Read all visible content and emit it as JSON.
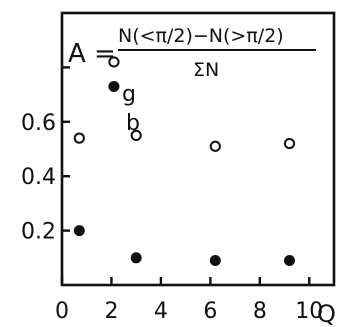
{
  "chart_data": {
    "type": "scatter",
    "annotation": {
      "lhs": "A =",
      "numerator": "N(<π/2)−N(>π/2)",
      "denominator": "ΣN"
    },
    "xlabel": "Q",
    "ylabel": "",
    "xlim": [
      0,
      11
    ],
    "ylim": [
      0,
      1.0
    ],
    "x_ticks": [
      0,
      2,
      4,
      6,
      8,
      10
    ],
    "y_ticks": [
      0.2,
      0.4,
      0.6
    ],
    "y_ticklabels": [
      "0.2",
      "0.4",
      "0.6"
    ],
    "x_ticklabels": [
      "0",
      "2",
      "4",
      "6",
      "8",
      "10"
    ],
    "series": [
      {
        "name": "g",
        "marker": "open-circle",
        "x": [
          0.7,
          2.1,
          3.0,
          6.2,
          9.2
        ],
        "y": [
          0.54,
          0.82,
          0.55,
          0.51,
          0.52
        ]
      },
      {
        "name": "b",
        "marker": "filled-circle",
        "x": [
          0.7,
          2.1,
          3.0,
          6.2,
          9.2
        ],
        "y": [
          0.2,
          0.73,
          0.1,
          0.09,
          0.09
        ]
      }
    ]
  }
}
